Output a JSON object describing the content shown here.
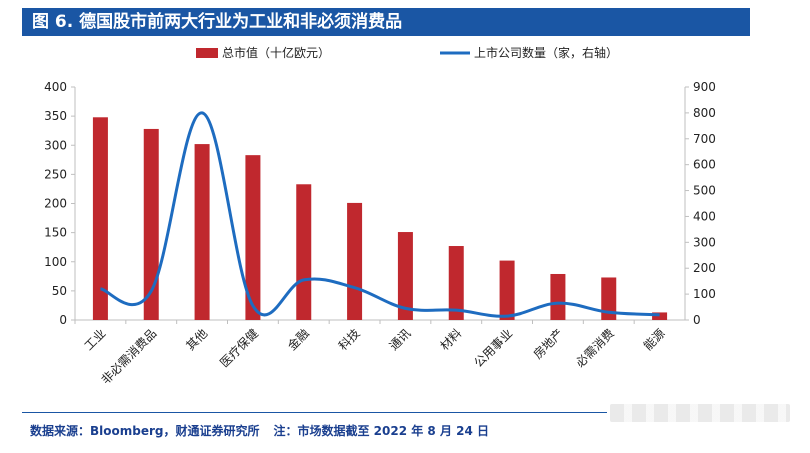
{
  "header": {
    "title": "图 6.  德国股市前两大行业为工业和非必须消费品"
  },
  "chart_data": {
    "type": "bar+line",
    "categories": [
      "工业",
      "非必需消费品",
      "其他",
      "医疗保健",
      "金融",
      "科技",
      "通讯",
      "材料",
      "公用事业",
      "房地产",
      "必需消费",
      "能源"
    ],
    "series": [
      {
        "name": "总市值（十亿欧元）",
        "type": "bar",
        "axis": "left",
        "color": "#c0282e",
        "values": [
          348,
          328,
          302,
          283,
          233,
          201,
          151,
          127,
          102,
          79,
          73,
          13
        ]
      },
      {
        "name": "上市公司数量（家，右轴）",
        "type": "line",
        "axis": "right",
        "color": "#1e6cc0",
        "values": [
          120,
          112,
          800,
          55,
          155,
          125,
          45,
          38,
          15,
          65,
          30,
          20
        ]
      }
    ],
    "y_left": {
      "min": 0,
      "max": 400,
      "ticks": [
        "0",
        "50",
        "100",
        "150",
        "200",
        "250",
        "300",
        "350",
        "400"
      ]
    },
    "y_right": {
      "min": 0,
      "max": 900,
      "ticks": [
        "0",
        "100",
        "200",
        "300",
        "400",
        "500",
        "600",
        "700",
        "800",
        "900"
      ]
    },
    "legend_position": "top-center",
    "grid": false
  },
  "footer": {
    "source": "数据来源：Bloomberg，财通证券研究所",
    "note": "注：市场数据截至 2022 年 8 月 24 日"
  },
  "colors": {
    "brand": "#1a56a4",
    "bar": "#c0282e",
    "line": "#1e6cc0",
    "axis": "#bfbfbf"
  }
}
